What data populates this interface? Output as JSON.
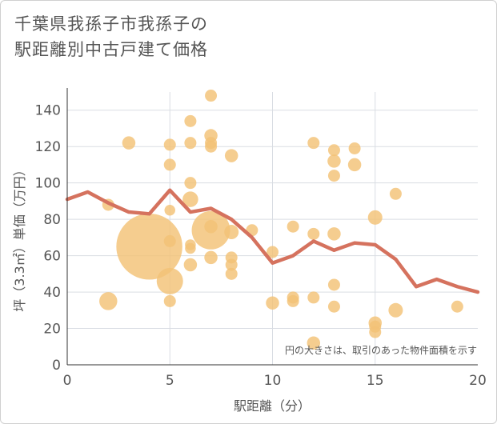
{
  "chart_data": {
    "type": "scatter",
    "title_lines": [
      "千葉県我孫子市我孫子の",
      "駅距離別中古戸建て価格"
    ],
    "xlabel": "駅距離（分）",
    "ylabel": "坪（3.3㎡）単価（万円）",
    "xlim": [
      0,
      20
    ],
    "ylim": [
      0,
      150
    ],
    "x_ticks": [
      0,
      5,
      10,
      15,
      20
    ],
    "y_ticks": [
      0,
      20,
      40,
      60,
      80,
      100,
      120,
      140
    ],
    "note": "円の大きさは、取引のあった物件面積を示す",
    "colors": {
      "bubble": "#f3c276",
      "line": "#d5725e",
      "grid": "#d9dde3",
      "text": "#555555"
    },
    "scatter": [
      {
        "x": 2,
        "y": 88,
        "s": 1
      },
      {
        "x": 2,
        "y": 35,
        "s": 1.5
      },
      {
        "x": 3,
        "y": 122,
        "s": 1.1
      },
      {
        "x": 4,
        "y": 65,
        "s": 5.5
      },
      {
        "x": 5,
        "y": 121,
        "s": 1
      },
      {
        "x": 5,
        "y": 110,
        "s": 1
      },
      {
        "x": 5,
        "y": 85,
        "s": 0.9
      },
      {
        "x": 5,
        "y": 68,
        "s": 1
      },
      {
        "x": 5,
        "y": 46,
        "s": 2.2
      },
      {
        "x": 5,
        "y": 35,
        "s": 1
      },
      {
        "x": 6,
        "y": 134,
        "s": 1
      },
      {
        "x": 6,
        "y": 122,
        "s": 1
      },
      {
        "x": 6,
        "y": 100,
        "s": 1
      },
      {
        "x": 6,
        "y": 91,
        "s": 1.3
      },
      {
        "x": 6,
        "y": 66,
        "s": 0.9
      },
      {
        "x": 6,
        "y": 64,
        "s": 0.9
      },
      {
        "x": 6,
        "y": 55,
        "s": 1.1
      },
      {
        "x": 7,
        "y": 148,
        "s": 1
      },
      {
        "x": 7,
        "y": 126,
        "s": 1.1
      },
      {
        "x": 7,
        "y": 122,
        "s": 1
      },
      {
        "x": 7,
        "y": 120,
        "s": 1
      },
      {
        "x": 7,
        "y": 74,
        "s": 3.2
      },
      {
        "x": 7,
        "y": 76,
        "s": 1.1
      },
      {
        "x": 7,
        "y": 59,
        "s": 1.1
      },
      {
        "x": 8,
        "y": 115,
        "s": 1.1
      },
      {
        "x": 8,
        "y": 73,
        "s": 1.2
      },
      {
        "x": 8,
        "y": 59,
        "s": 1
      },
      {
        "x": 8,
        "y": 55,
        "s": 1
      },
      {
        "x": 8,
        "y": 50,
        "s": 1
      },
      {
        "x": 9,
        "y": 74,
        "s": 1
      },
      {
        "x": 10,
        "y": 62,
        "s": 1
      },
      {
        "x": 10,
        "y": 34,
        "s": 1.1
      },
      {
        "x": 11,
        "y": 76,
        "s": 1
      },
      {
        "x": 11,
        "y": 37,
        "s": 1
      },
      {
        "x": 11,
        "y": 35,
        "s": 1
      },
      {
        "x": 12,
        "y": 122,
        "s": 1
      },
      {
        "x": 12,
        "y": 72,
        "s": 1
      },
      {
        "x": 12,
        "y": 37,
        "s": 1
      },
      {
        "x": 12,
        "y": 12,
        "s": 1.1
      },
      {
        "x": 13,
        "y": 118,
        "s": 1
      },
      {
        "x": 13,
        "y": 112,
        "s": 1.1
      },
      {
        "x": 13,
        "y": 104,
        "s": 1
      },
      {
        "x": 13,
        "y": 72,
        "s": 1.1
      },
      {
        "x": 13,
        "y": 44,
        "s": 1
      },
      {
        "x": 13,
        "y": 32,
        "s": 1
      },
      {
        "x": 14,
        "y": 119,
        "s": 1
      },
      {
        "x": 14,
        "y": 110,
        "s": 1.1
      },
      {
        "x": 15,
        "y": 81,
        "s": 1.2
      },
      {
        "x": 15,
        "y": 23,
        "s": 1.1
      },
      {
        "x": 15,
        "y": 21,
        "s": 1
      },
      {
        "x": 15,
        "y": 18,
        "s": 1
      },
      {
        "x": 16,
        "y": 94,
        "s": 1
      },
      {
        "x": 16,
        "y": 30,
        "s": 1.2
      },
      {
        "x": 19,
        "y": 32,
        "s": 1
      }
    ],
    "series": [
      {
        "x": [
          0,
          1,
          2,
          3,
          4,
          5,
          6,
          7,
          8,
          9,
          10,
          11,
          12,
          13,
          14,
          15,
          16,
          17,
          18,
          19,
          20
        ],
        "values": [
          91,
          95,
          89,
          84,
          83,
          96,
          84,
          86,
          80,
          70,
          56,
          60,
          68,
          63,
          67,
          66,
          58,
          43,
          47,
          43,
          40
        ]
      }
    ]
  }
}
